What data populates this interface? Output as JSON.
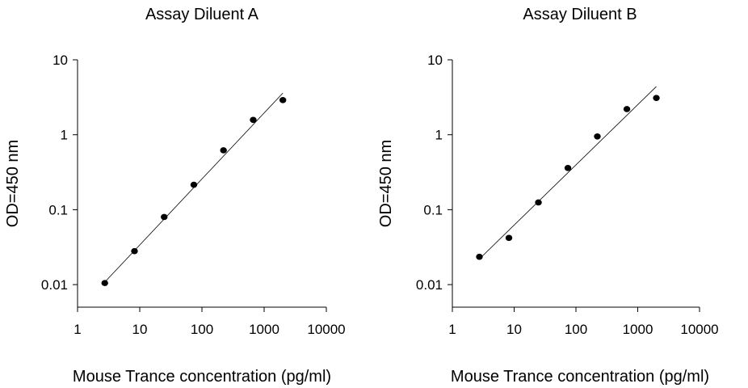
{
  "chart_data": [
    {
      "type": "scatter",
      "title": "Assay Diluent A",
      "xlabel": "Mouse Trance concentration (pg/ml)",
      "ylabel": "OD=450 nm",
      "xscale": "log",
      "yscale": "log",
      "xlim": [
        1,
        10000
      ],
      "ylim": [
        0.005,
        10
      ],
      "xticks": [
        "1",
        "10",
        "100",
        "1000",
        "10000"
      ],
      "yticks": [
        "0.01",
        "0.1",
        "1",
        "10"
      ],
      "grid": false,
      "series": [
        {
          "marker": "circle",
          "color": "#000000",
          "x": [
            2.74,
            8.23,
            24.7,
            74.1,
            222,
            667,
            2000
          ],
          "y": [
            0.0105,
            0.028,
            0.08,
            0.215,
            0.62,
            1.58,
            2.9
          ]
        }
      ],
      "fit_line": {
        "color": "#000000",
        "x": [
          2.74,
          2000
        ],
        "y": [
          0.0108,
          3.6
        ]
      }
    },
    {
      "type": "scatter",
      "title": "Assay Diluent B",
      "xlabel": "Mouse Trance concentration (pg/ml)",
      "ylabel": "OD=450 nm",
      "xscale": "log",
      "yscale": "log",
      "xlim": [
        1,
        10000
      ],
      "ylim": [
        0.005,
        10
      ],
      "xticks": [
        "1",
        "10",
        "100",
        "1000",
        "10000"
      ],
      "yticks": [
        "0.01",
        "0.1",
        "1",
        "10"
      ],
      "grid": false,
      "series": [
        {
          "marker": "circle",
          "color": "#000000",
          "x": [
            2.74,
            8.23,
            24.7,
            74.1,
            222,
            667,
            2000
          ],
          "y": [
            0.0235,
            0.042,
            0.125,
            0.36,
            0.95,
            2.2,
            3.1
          ]
        }
      ],
      "fit_line": {
        "color": "#000000",
        "x": [
          2.74,
          2000
        ],
        "y": [
          0.022,
          4.4
        ]
      }
    }
  ]
}
